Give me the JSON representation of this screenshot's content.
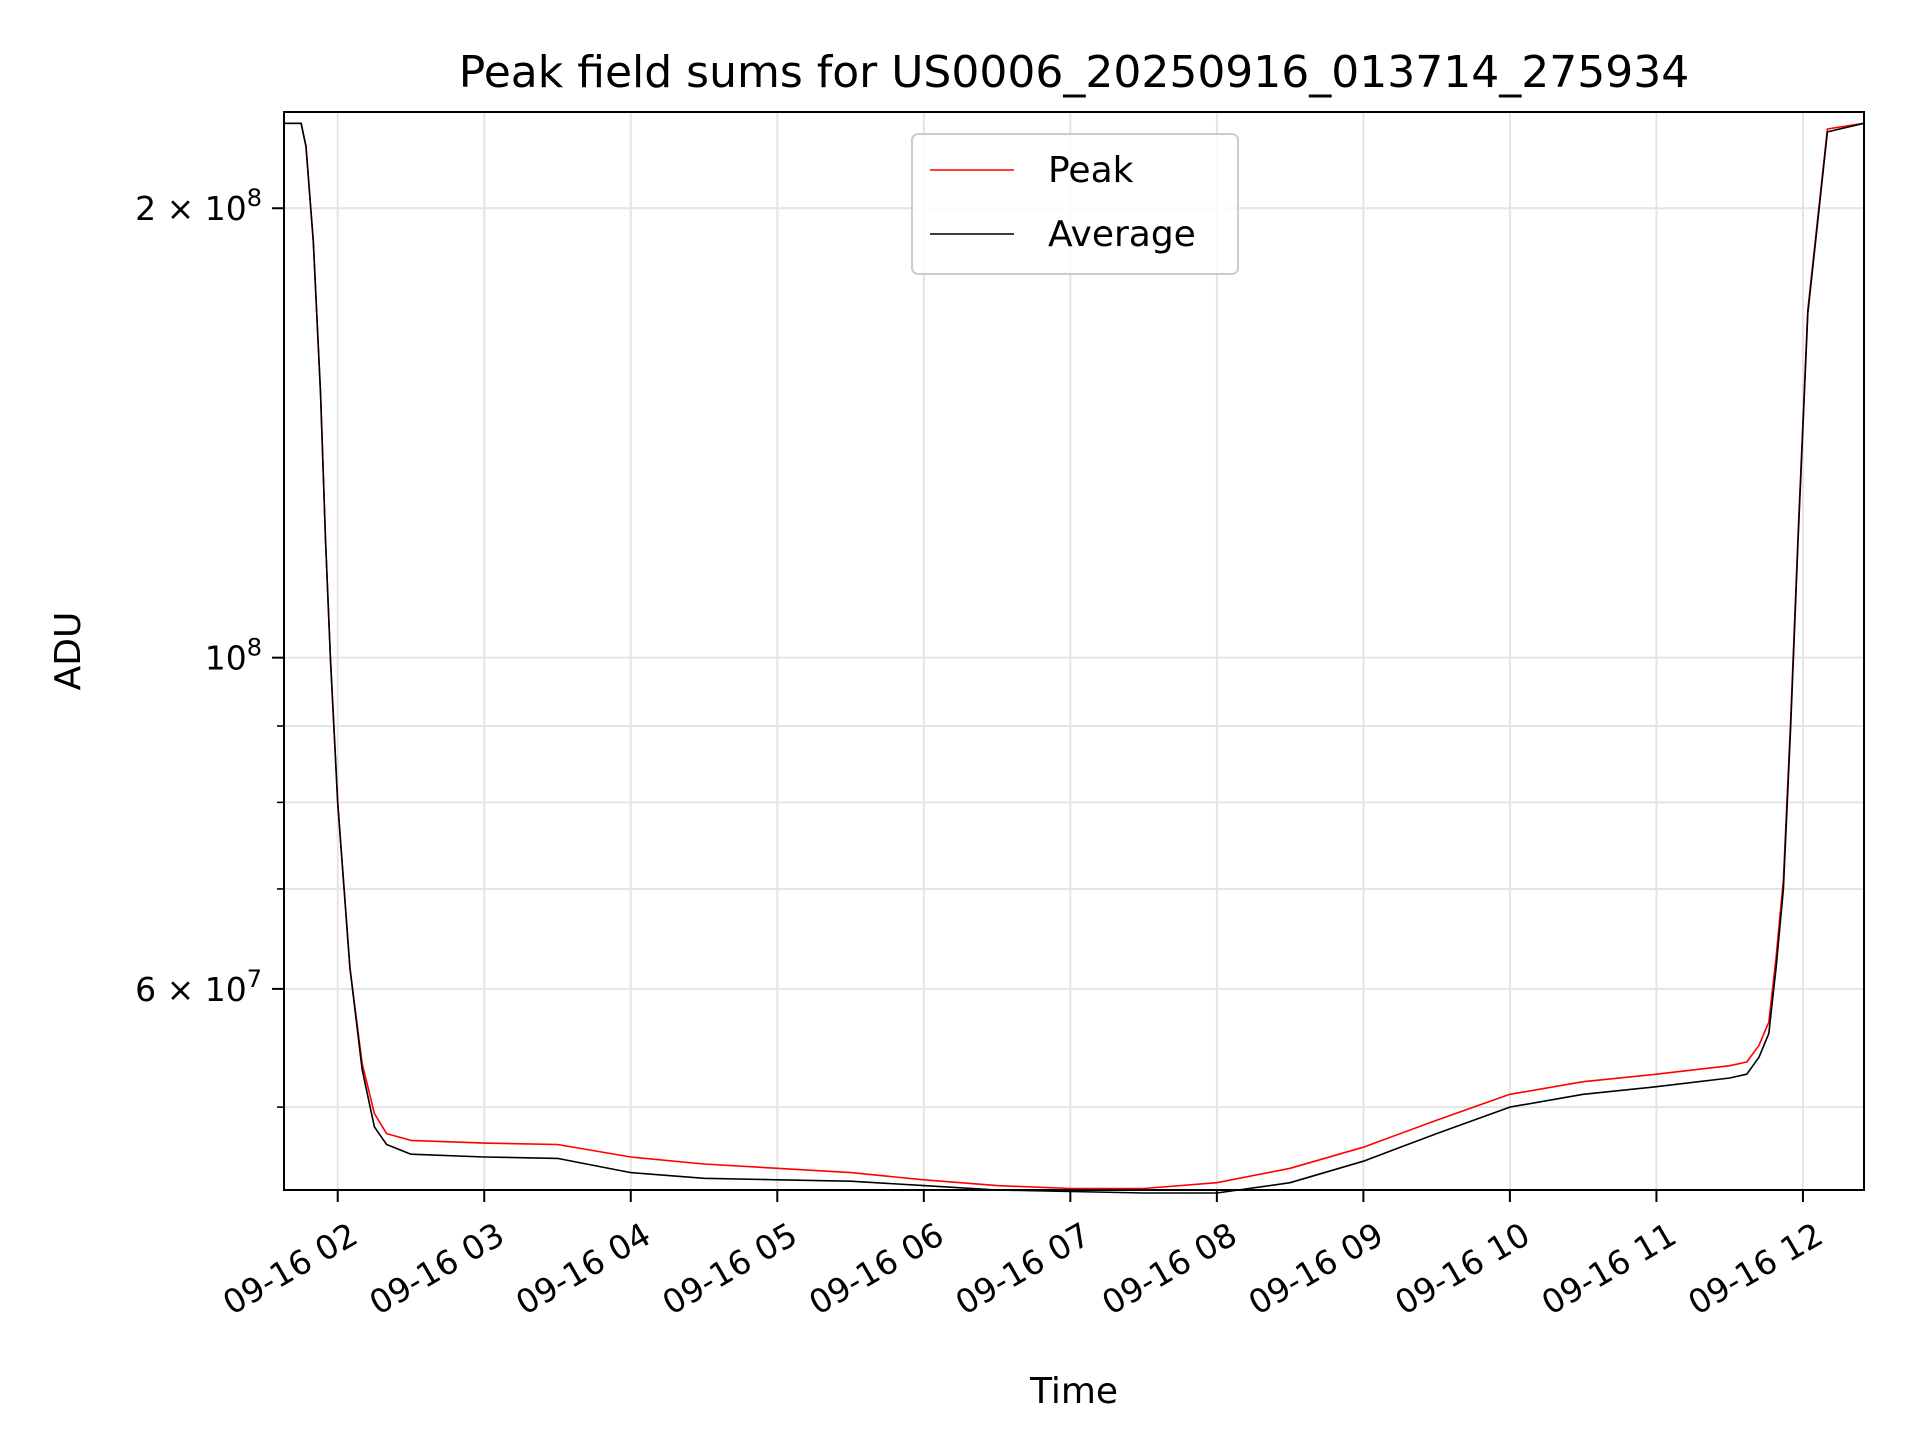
{
  "chart_data": {
    "type": "line",
    "title": "Peak field sums for US0006_20250916_013714_275934",
    "xlabel": "Time",
    "ylabel": "ADU",
    "yscale": "log",
    "grid": true,
    "legend_position": "top-center",
    "xlim": [
      "2025-09-16 01:38",
      "2025-09-16 12:25"
    ],
    "ylim": [
      44000000,
      232000000
    ],
    "x_ticks": [
      "09-16 02",
      "09-16 03",
      "09-16 04",
      "09-16 05",
      "09-16 06",
      "09-16 07",
      "09-16 08",
      "09-16 09",
      "09-16 10",
      "09-16 11",
      "09-16 12"
    ],
    "y_major_ticks": [
      {
        "value": 200000000,
        "base": "2 × 10",
        "exp": "8"
      },
      {
        "value": 100000000,
        "base": "10",
        "exp": "8"
      },
      {
        "value": 60000000,
        "base": "6 × 10",
        "exp": "7"
      }
    ],
    "y_minor_ticks": [
      300000000,
      90000000,
      80000000,
      70000000,
      50000000,
      40000000
    ],
    "series": [
      {
        "name": "Average",
        "color": "#000000",
        "x": [
          "2025-09-16 01:38",
          "2025-09-16 01:45",
          "2025-09-16 01:47",
          "2025-09-16 01:50",
          "2025-09-16 01:53",
          "2025-09-16 01:55",
          "2025-09-16 01:57",
          "2025-09-16 02:00",
          "2025-09-16 02:05",
          "2025-09-16 02:10",
          "2025-09-16 02:15",
          "2025-09-16 02:20",
          "2025-09-16 02:30",
          "2025-09-16 03:00",
          "2025-09-16 03:30",
          "2025-09-16 04:00",
          "2025-09-16 04:30",
          "2025-09-16 05:00",
          "2025-09-16 05:30",
          "2025-09-16 06:00",
          "2025-09-16 06:30",
          "2025-09-16 07:00",
          "2025-09-16 07:30",
          "2025-09-16 08:00",
          "2025-09-16 08:30",
          "2025-09-16 09:00",
          "2025-09-16 09:30",
          "2025-09-16 10:00",
          "2025-09-16 10:30",
          "2025-09-16 11:00",
          "2025-09-16 11:30",
          "2025-09-16 11:37",
          "2025-09-16 11:42",
          "2025-09-16 11:46",
          "2025-09-16 11:49",
          "2025-09-16 11:52",
          "2025-09-16 11:55",
          "2025-09-16 11:58",
          "2025-09-16 12:02",
          "2025-09-16 12:10",
          "2025-09-16 12:25"
        ],
        "y": [
          228000000,
          228000000,
          220000000,
          190000000,
          150000000,
          120000000,
          100000000,
          80000000,
          62000000,
          53000000,
          48500000,
          47200000,
          46500000,
          46300000,
          46200000,
          45200000,
          44800000,
          44700000,
          44600000,
          44300000,
          44000000,
          43900000,
          43800000,
          43800000,
          44500000,
          46000000,
          48000000,
          50000000,
          51000000,
          51600000,
          52300000,
          52600000,
          54000000,
          56000000,
          62000000,
          70000000,
          90000000,
          120000000,
          170000000,
          225000000,
          228000000
        ]
      },
      {
        "name": "Peak",
        "color": "#ff0000",
        "x": [
          "2025-09-16 01:38",
          "2025-09-16 01:45",
          "2025-09-16 01:47",
          "2025-09-16 01:50",
          "2025-09-16 01:53",
          "2025-09-16 01:55",
          "2025-09-16 01:57",
          "2025-09-16 02:00",
          "2025-09-16 02:05",
          "2025-09-16 02:10",
          "2025-09-16 02:15",
          "2025-09-16 02:20",
          "2025-09-16 02:30",
          "2025-09-16 03:00",
          "2025-09-16 03:30",
          "2025-09-16 04:00",
          "2025-09-16 04:30",
          "2025-09-16 05:00",
          "2025-09-16 05:30",
          "2025-09-16 06:00",
          "2025-09-16 06:30",
          "2025-09-16 07:00",
          "2025-09-16 07:30",
          "2025-09-16 08:00",
          "2025-09-16 08:30",
          "2025-09-16 09:00",
          "2025-09-16 09:30",
          "2025-09-16 10:00",
          "2025-09-16 10:30",
          "2025-09-16 11:00",
          "2025-09-16 11:30",
          "2025-09-16 11:37",
          "2025-09-16 11:42",
          "2025-09-16 11:46",
          "2025-09-16 11:49",
          "2025-09-16 11:52",
          "2025-09-16 11:55",
          "2025-09-16 11:58",
          "2025-09-16 12:02",
          "2025-09-16 12:10",
          "2025-09-16 12:25"
        ],
        "y": [
          228000000,
          228000000,
          220000000,
          190000000,
          150000000,
          120000000,
          100000000,
          80000000,
          62000000,
          53500000,
          49500000,
          48000000,
          47500000,
          47300000,
          47200000,
          46300000,
          45800000,
          45500000,
          45200000,
          44700000,
          44300000,
          44100000,
          44100000,
          44500000,
          45500000,
          47000000,
          49000000,
          51000000,
          52000000,
          52600000,
          53300000,
          53600000,
          55000000,
          57000000,
          63000000,
          71000000,
          91000000,
          121000000,
          171000000,
          226000000,
          228000000
        ]
      }
    ]
  }
}
